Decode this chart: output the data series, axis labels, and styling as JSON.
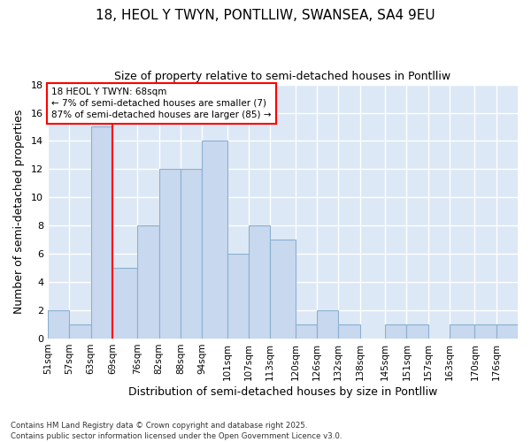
{
  "title1": "18, HEOL Y TWYN, PONTLLIW, SWANSEA, SA4 9EU",
  "title2": "Size of property relative to semi-detached houses in Pontlliw",
  "xlabel": "Distribution of semi-detached houses by size in Pontlliw",
  "ylabel": "Number of semi-detached properties",
  "bar_labels": [
    "51sqm",
    "57sqm",
    "63sqm",
    "69sqm",
    "76sqm",
    "82sqm",
    "88sqm",
    "94sqm",
    "101sqm",
    "107sqm",
    "113sqm",
    "120sqm",
    "126sqm",
    "132sqm",
    "138sqm",
    "145sqm",
    "151sqm",
    "157sqm",
    "163sqm",
    "170sqm",
    "176sqm"
  ],
  "bar_values": [
    2,
    1,
    15,
    5,
    8,
    12,
    12,
    14,
    6,
    8,
    7,
    1,
    2,
    1,
    0,
    1,
    1,
    0,
    1,
    1,
    1
  ],
  "bar_color": "#c8d8ee",
  "bar_edgecolor": "#8ab0d0",
  "bg_color": "#dce8f5",
  "grid_color": "#ffffff",
  "vline_x": 69,
  "vline_color": "red",
  "annotation_line1": "18 HEOL Y TWYN: 68sqm",
  "annotation_line2": "← 7% of semi-detached houses are smaller (7)",
  "annotation_line3": "87% of semi-detached houses are larger (85) →",
  "footer": "Contains HM Land Registry data © Crown copyright and database right 2025.\nContains public sector information licensed under the Open Government Licence v3.0.",
  "ylim": [
    0,
    18
  ],
  "yticks": [
    0,
    2,
    4,
    6,
    8,
    10,
    12,
    14,
    16,
    18
  ],
  "bin_edges": [
    51,
    57,
    63,
    69,
    76,
    82,
    88,
    94,
    101,
    107,
    113,
    120,
    126,
    132,
    138,
    145,
    151,
    157,
    163,
    170,
    176,
    182
  ]
}
